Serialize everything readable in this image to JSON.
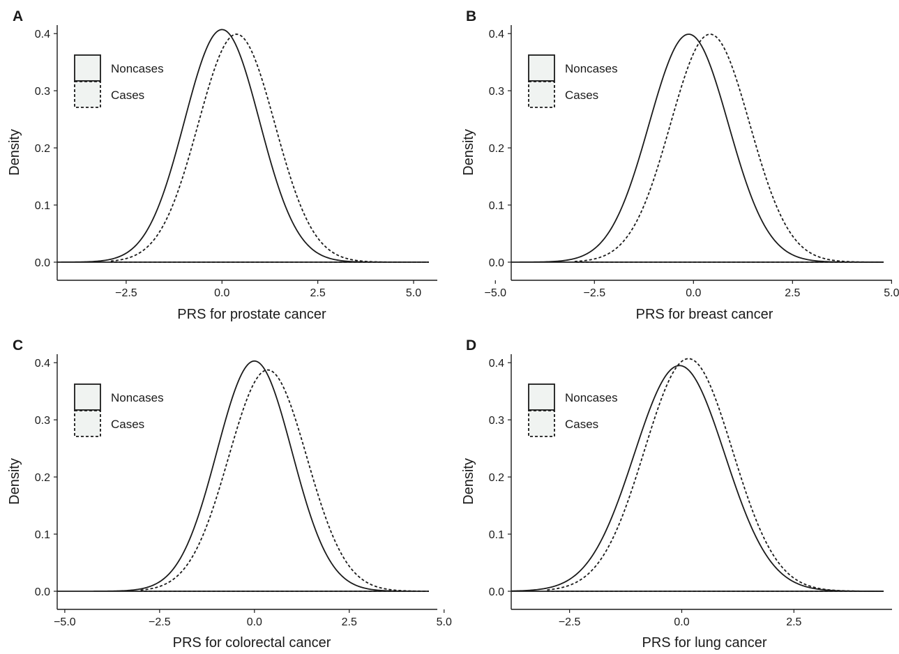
{
  "chart_data": [
    {
      "panel_label": "A",
      "type": "line",
      "xlabel": "PRS for prostate cancer",
      "ylabel": "Density",
      "xlim": [
        -4.3,
        5.4
      ],
      "ylim": [
        0,
        0.41
      ],
      "xticks": [
        "−2.5",
        "0.0",
        "2.5",
        "5.0"
      ],
      "xtick_values": [
        -2.5,
        0,
        2.5,
        5
      ],
      "yticks": [
        "0.0",
        "0.1",
        "0.2",
        "0.3",
        "0.4"
      ],
      "ytick_values": [
        0,
        0.1,
        0.2,
        0.3,
        0.4
      ],
      "legend": [
        "Noncases",
        "Cases"
      ],
      "series": [
        {
          "name": "Noncases",
          "line": "solid",
          "mean": 0.0,
          "sd": 0.98,
          "x_range": [
            -4.3,
            5.4
          ]
        },
        {
          "name": "Cases",
          "line": "dashed",
          "mean": 0.38,
          "sd": 1.0,
          "x_range": [
            -2.9,
            5.4
          ]
        }
      ]
    },
    {
      "panel_label": "B",
      "type": "line",
      "xlabel": "PRS for breast cancer",
      "ylabel": "Density",
      "xlim": [
        -4.6,
        4.8
      ],
      "ylim": [
        0,
        0.41
      ],
      "xticks": [
        "−5.0",
        "−2.5",
        "0.0",
        "2.5",
        "5.0"
      ],
      "xtick_values": [
        -5,
        -2.5,
        0,
        2.5,
        5
      ],
      "yticks": [
        "0.0",
        "0.1",
        "0.2",
        "0.3",
        "0.4"
      ],
      "ytick_values": [
        0,
        0.1,
        0.2,
        0.3,
        0.4
      ],
      "legend": [
        "Noncases",
        "Cases"
      ],
      "series": [
        {
          "name": "Noncases",
          "line": "solid",
          "mean": -0.12,
          "sd": 1.0,
          "x_range": [
            -4.6,
            4.8
          ]
        },
        {
          "name": "Cases",
          "line": "dashed",
          "mean": 0.42,
          "sd": 1.0,
          "x_range": [
            -3.0,
            4.8
          ]
        }
      ]
    },
    {
      "panel_label": "C",
      "type": "line",
      "xlabel": "PRS for colorectal cancer",
      "ylabel": "Density",
      "xlim": [
        -5.2,
        4.6
      ],
      "ylim": [
        0,
        0.41
      ],
      "xticks": [
        "−5.0",
        "−2.5",
        "0.0",
        "2.5",
        "5.0"
      ],
      "xtick_values": [
        -5,
        -2.5,
        0,
        2.5,
        5
      ],
      "yticks": [
        "0.0",
        "0.1",
        "0.2",
        "0.3",
        "0.4"
      ],
      "ytick_values": [
        0,
        0.1,
        0.2,
        0.3,
        0.4
      ],
      "legend": [
        "Noncases",
        "Cases"
      ],
      "series": [
        {
          "name": "Noncases",
          "line": "solid",
          "mean": 0.0,
          "sd": 0.99,
          "x_range": [
            -5.2,
            4.6
          ]
        },
        {
          "name": "Cases",
          "line": "dashed",
          "mean": 0.35,
          "sd": 1.03,
          "x_range": [
            -3.0,
            4.6
          ]
        }
      ]
    },
    {
      "panel_label": "D",
      "type": "line",
      "xlabel": "PRS for lung cancer",
      "ylabel": "Density",
      "xlim": [
        -3.8,
        4.5
      ],
      "ylim": [
        0,
        0.41
      ],
      "xticks": [
        "−2.5",
        "0.0",
        "2.5"
      ],
      "xtick_values": [
        -2.5,
        0,
        2.5
      ],
      "yticks": [
        "0.0",
        "0.1",
        "0.2",
        "0.3",
        "0.4"
      ],
      "ytick_values": [
        0,
        0.1,
        0.2,
        0.3,
        0.4
      ],
      "legend": [
        "Noncases",
        "Cases"
      ],
      "series": [
        {
          "name": "Noncases",
          "line": "solid",
          "mean": -0.05,
          "sd": 1.01,
          "x_range": [
            -3.8,
            4.5
          ]
        },
        {
          "name": "Cases",
          "line": "dashed",
          "mean": 0.15,
          "sd": 0.98,
          "x_range": [
            -3.0,
            4.5
          ]
        }
      ]
    }
  ],
  "colors": {
    "line": "#1a1a1a",
    "legend_fill": "#f0f3f1",
    "axis": "#1a1a1a",
    "text": "#1a1a1a"
  }
}
